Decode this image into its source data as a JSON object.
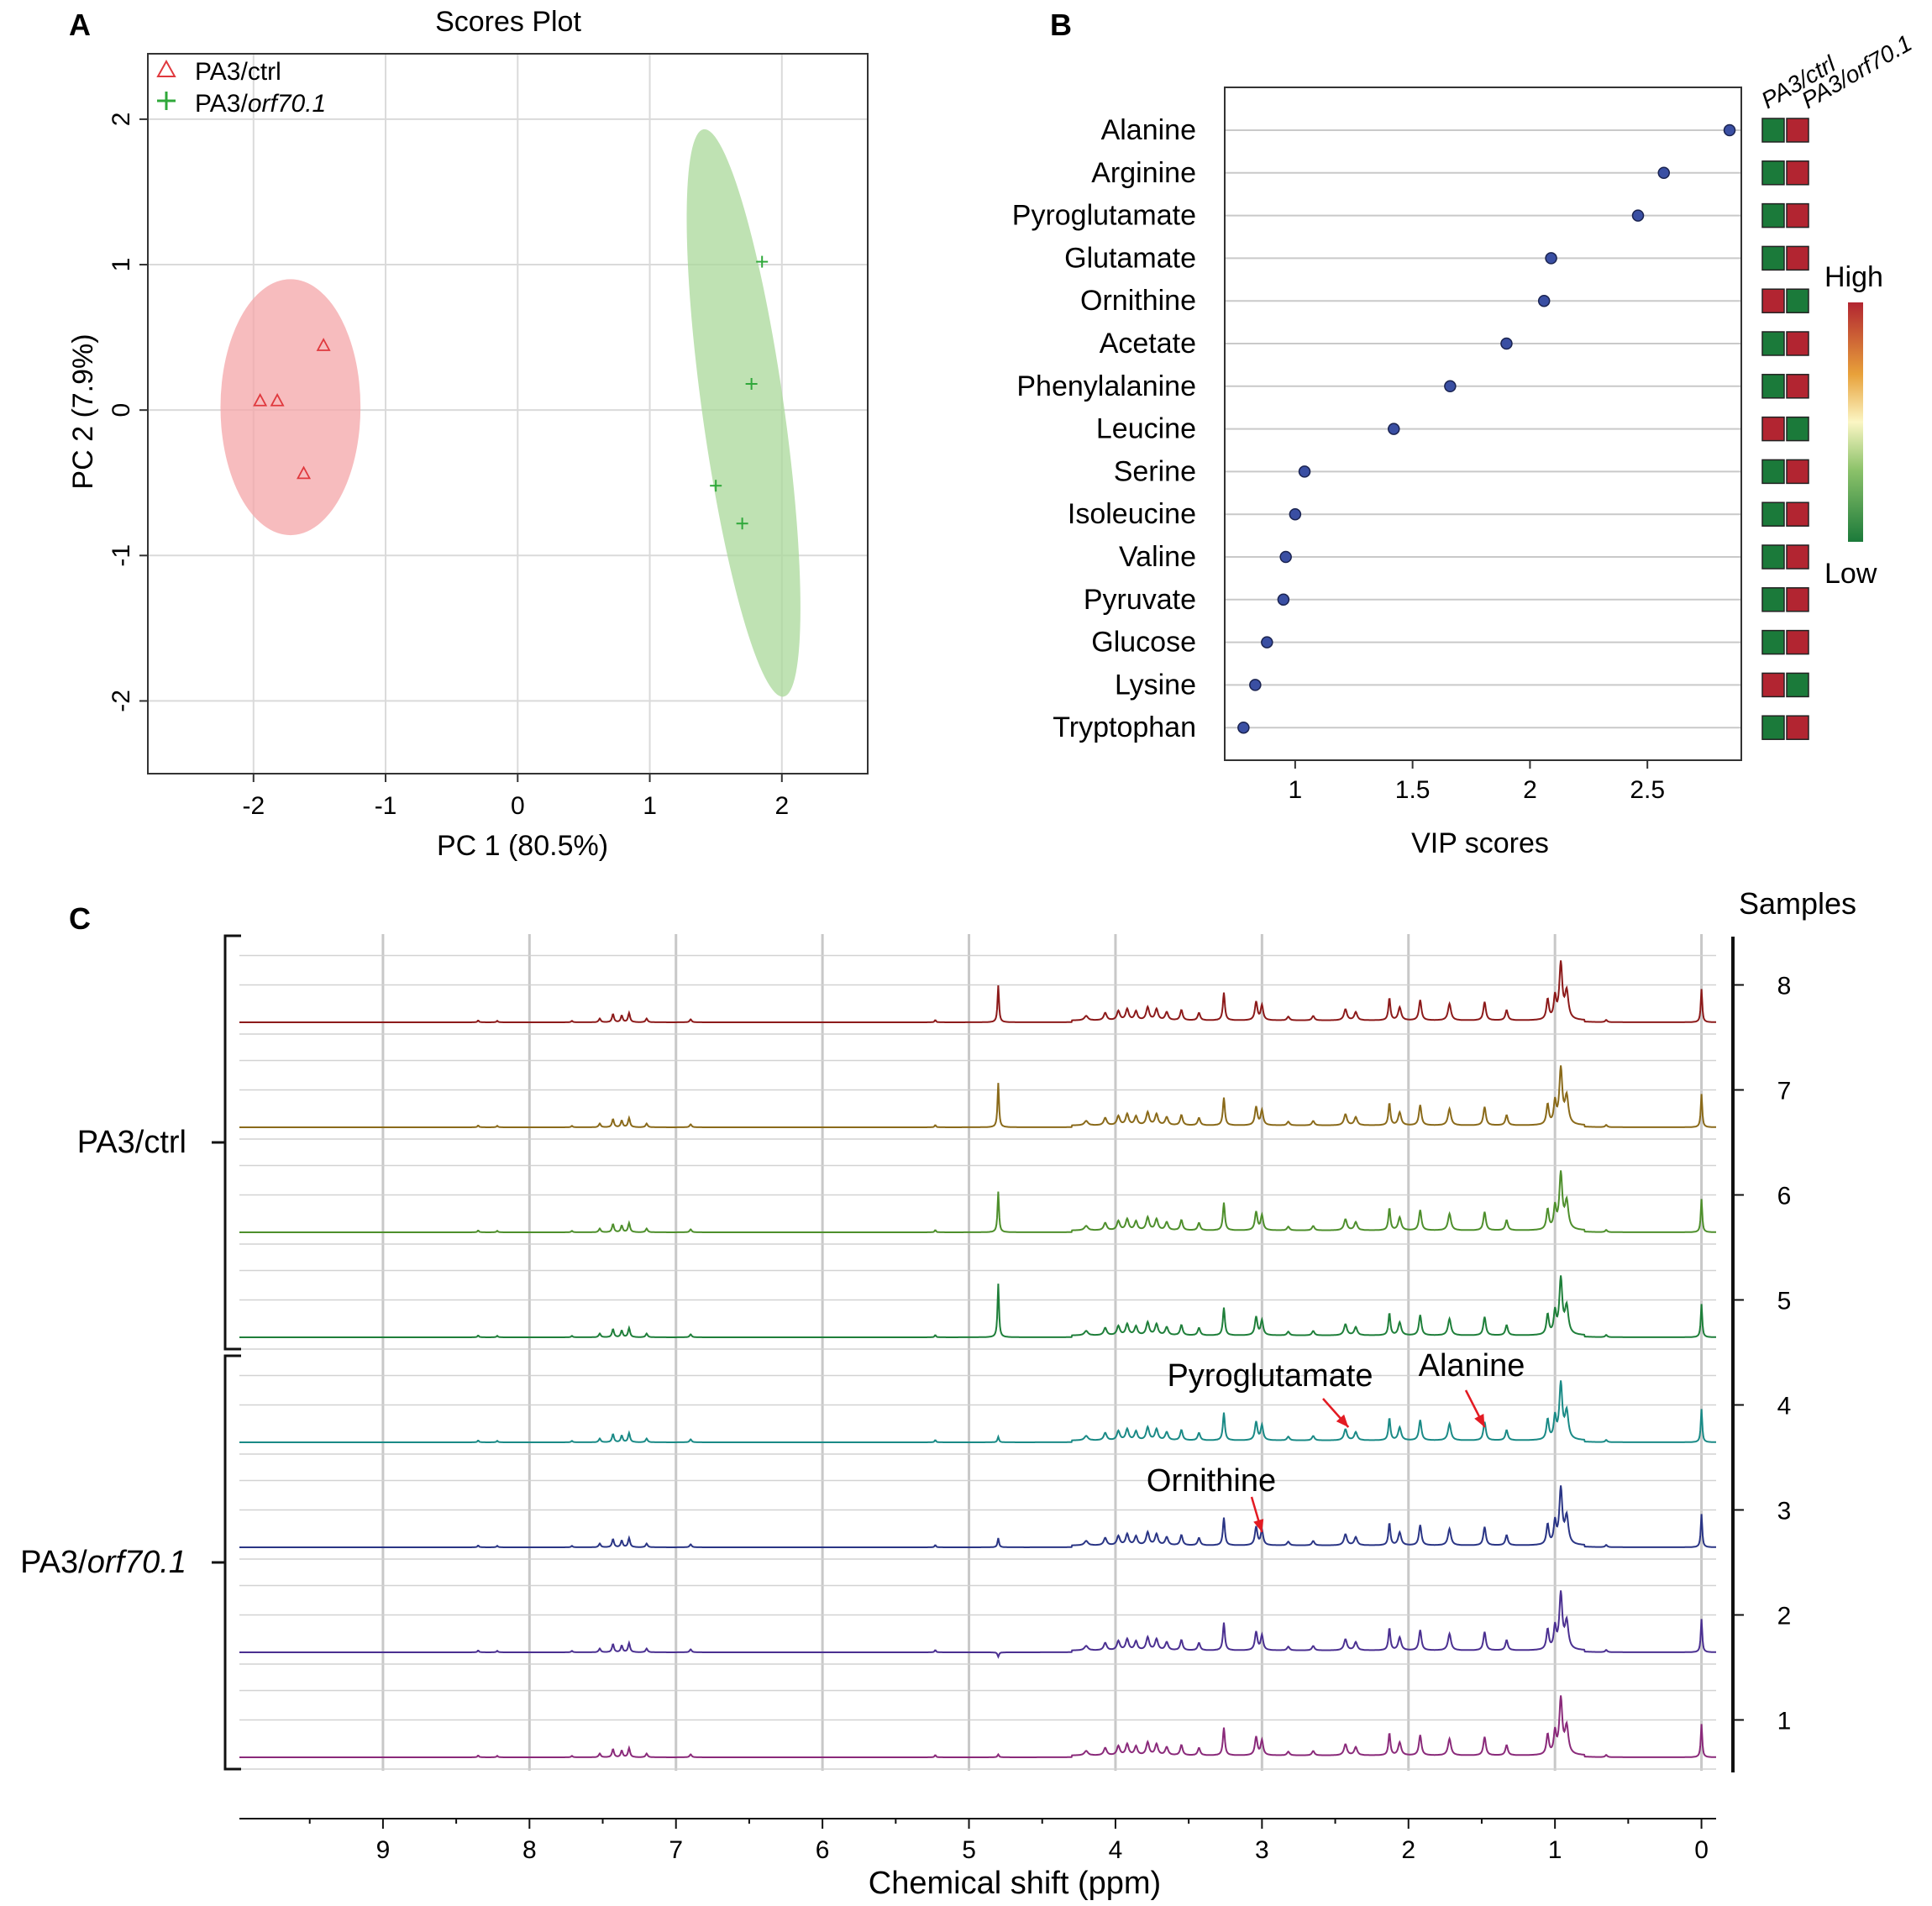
{
  "panel_labels": {
    "a": "A",
    "b": "B",
    "c": "C"
  },
  "colors": {
    "ctrl": "#e0393e",
    "ctrl_fill": "#f4a6a8",
    "orf": "#2fa83a",
    "orf_fill": "#a9d89a",
    "heat_high": "#b22531",
    "heat_low": "#1b7a3a",
    "vip_point": "#3a4fa3"
  },
  "chart_data": [
    {
      "type": "scatter",
      "title": "Scores Plot",
      "xlabel": "PC 1 (80.5%)",
      "ylabel": "PC 2 (7.9%)",
      "xlim": [
        -2.8,
        2.65
      ],
      "ylim": [
        -2.5,
        2.45
      ],
      "xticks": [
        -2,
        -1,
        0,
        1,
        2
      ],
      "yticks": [
        -2,
        -1,
        0,
        1,
        2
      ],
      "grid": true,
      "legend_position": "top-left",
      "series": [
        {
          "name": "PA3/ctrl",
          "name_main": "PA3/",
          "name_italic": "",
          "name_rest": "ctrl",
          "marker": "triangle",
          "color_key": "ctrl",
          "points": [
            [
              -1.47,
              0.44
            ],
            [
              -1.95,
              0.06
            ],
            [
              -1.82,
              0.06
            ],
            [
              -1.62,
              -0.44
            ]
          ],
          "ellipse": {
            "center": [
              -1.72,
              0.02
            ],
            "rx": 0.53,
            "ry": 0.88,
            "angle_deg": 0
          }
        },
        {
          "name": "PA3/orf70.1",
          "name_main": "PA3/",
          "name_italic": "orf70.1",
          "name_rest": "",
          "marker": "plus",
          "color_key": "orf",
          "points": [
            [
              1.85,
              1.02
            ],
            [
              1.77,
              0.18
            ],
            [
              1.5,
              -0.52
            ],
            [
              1.7,
              -0.78
            ]
          ],
          "ellipse": {
            "center": [
              1.71,
              -0.02
            ],
            "rx": 0.31,
            "ry": 1.97,
            "angle_deg": -8
          }
        }
      ]
    },
    {
      "type": "dot",
      "xlabel": "VIP scores",
      "xlim": [
        0.7,
        2.9
      ],
      "xticks": [
        "1",
        "1.5",
        "2",
        "2.5"
      ],
      "heatmap_columns": [
        "PA3/ctrl",
        "PA3/orf70.1"
      ],
      "heat_legend": {
        "high": "High",
        "low": "Low"
      },
      "items": [
        {
          "name": "Alanine",
          "vip": 2.85,
          "ctrl": "low",
          "orf": "high"
        },
        {
          "name": "Arginine",
          "vip": 2.57,
          "ctrl": "low",
          "orf": "high"
        },
        {
          "name": "Pyroglutamate",
          "vip": 2.46,
          "ctrl": "low",
          "orf": "high"
        },
        {
          "name": "Glutamate",
          "vip": 2.09,
          "ctrl": "low",
          "orf": "high"
        },
        {
          "name": "Ornithine",
          "vip": 2.06,
          "ctrl": "high",
          "orf": "low"
        },
        {
          "name": "Acetate",
          "vip": 1.9,
          "ctrl": "low",
          "orf": "high"
        },
        {
          "name": "Phenylalanine",
          "vip": 1.66,
          "ctrl": "low",
          "orf": "high"
        },
        {
          "name": "Leucine",
          "vip": 1.42,
          "ctrl": "high",
          "orf": "low"
        },
        {
          "name": "Serine",
          "vip": 1.04,
          "ctrl": "low",
          "orf": "high"
        },
        {
          "name": "Isoleucine",
          "vip": 1.0,
          "ctrl": "low",
          "orf": "high"
        },
        {
          "name": "Valine",
          "vip": 0.96,
          "ctrl": "low",
          "orf": "high"
        },
        {
          "name": "Pyruvate",
          "vip": 0.95,
          "ctrl": "low",
          "orf": "high"
        },
        {
          "name": "Glucose",
          "vip": 0.88,
          "ctrl": "low",
          "orf": "high"
        },
        {
          "name": "Lysine",
          "vip": 0.83,
          "ctrl": "high",
          "orf": "low"
        },
        {
          "name": "Tryptophan",
          "vip": 0.78,
          "ctrl": "low",
          "orf": "high"
        }
      ]
    },
    {
      "type": "line",
      "xlabel": "Chemical shift (ppm)",
      "xlim": [
        9.98,
        -0.1
      ],
      "xticks": [
        "9",
        "8",
        "7",
        "6",
        "5",
        "4",
        "3",
        "2",
        "1",
        "0"
      ],
      "right_axis_title": "Samples",
      "groups": [
        {
          "label_main": "PA3/",
          "label_italic": "",
          "label_rest": "ctrl",
          "samples": [
            8,
            7,
            6,
            5
          ]
        },
        {
          "label_main": "PA3/",
          "label_italic": "orf70.1",
          "label_rest": "",
          "samples": [
            4,
            3,
            2,
            1
          ]
        }
      ],
      "samples": [
        {
          "id": "8",
          "color": "#8c1a1a",
          "water": 1.0,
          "signal": 1.0
        },
        {
          "id": "7",
          "color": "#8a6a1a",
          "water": 1.2,
          "signal": 1.0
        },
        {
          "id": "6",
          "color": "#4e8f2c",
          "water": 1.1,
          "signal": 1.0
        },
        {
          "id": "5",
          "color": "#1f7f3a",
          "water": 1.45,
          "signal": 1.0
        },
        {
          "id": "4",
          "color": "#1a8a86",
          "water": 0.15,
          "signal": 1.0
        },
        {
          "id": "3",
          "color": "#2a3585",
          "water": 0.25,
          "signal": 1.0
        },
        {
          "id": "2",
          "color": "#4b3091",
          "water": -0.12,
          "signal": 1.0
        },
        {
          "id": "1",
          "color": "#8a2a7a",
          "water": 0.08,
          "signal": 1.0
        }
      ],
      "peaks": [
        {
          "ppm": 8.35,
          "h": 0.05,
          "w": 0.006
        },
        {
          "ppm": 8.22,
          "h": 0.04,
          "w": 0.006
        },
        {
          "ppm": 7.71,
          "h": 0.04,
          "w": 0.006
        },
        {
          "ppm": 7.52,
          "h": 0.1,
          "w": 0.008
        },
        {
          "ppm": 7.43,
          "h": 0.22,
          "w": 0.008
        },
        {
          "ppm": 7.37,
          "h": 0.18,
          "w": 0.008
        },
        {
          "ppm": 7.32,
          "h": 0.25,
          "w": 0.008
        },
        {
          "ppm": 7.2,
          "h": 0.1,
          "w": 0.008
        },
        {
          "ppm": 6.9,
          "h": 0.08,
          "w": 0.008
        },
        {
          "ppm": 5.23,
          "h": 0.06,
          "w": 0.006
        },
        {
          "ppm": 4.2,
          "h": 0.12,
          "w": 0.015
        },
        {
          "ppm": 4.07,
          "h": 0.2,
          "w": 0.012
        },
        {
          "ppm": 3.98,
          "h": 0.25,
          "w": 0.012
        },
        {
          "ppm": 3.92,
          "h": 0.3,
          "w": 0.012
        },
        {
          "ppm": 3.86,
          "h": 0.24,
          "w": 0.012
        },
        {
          "ppm": 3.78,
          "h": 0.35,
          "w": 0.012
        },
        {
          "ppm": 3.72,
          "h": 0.3,
          "w": 0.012
        },
        {
          "ppm": 3.65,
          "h": 0.22,
          "w": 0.012
        },
        {
          "ppm": 3.55,
          "h": 0.28,
          "w": 0.01
        },
        {
          "ppm": 3.43,
          "h": 0.2,
          "w": 0.01
        },
        {
          "ppm": 3.26,
          "h": 0.75,
          "w": 0.008
        },
        {
          "ppm": 3.04,
          "h": 0.5,
          "w": 0.01
        },
        {
          "ppm": 3.0,
          "h": 0.4,
          "w": 0.01
        },
        {
          "ppm": 2.82,
          "h": 0.1,
          "w": 0.01
        },
        {
          "ppm": 2.65,
          "h": 0.12,
          "w": 0.01
        },
        {
          "ppm": 2.43,
          "h": 0.3,
          "w": 0.012
        },
        {
          "ppm": 2.36,
          "h": 0.22,
          "w": 0.012
        },
        {
          "ppm": 2.13,
          "h": 0.6,
          "w": 0.008
        },
        {
          "ppm": 2.06,
          "h": 0.35,
          "w": 0.012
        },
        {
          "ppm": 1.92,
          "h": 0.55,
          "w": 0.01
        },
        {
          "ppm": 1.72,
          "h": 0.45,
          "w": 0.012
        },
        {
          "ppm": 1.48,
          "h": 0.5,
          "w": 0.01
        },
        {
          "ppm": 1.33,
          "h": 0.28,
          "w": 0.01
        },
        {
          "ppm": 1.05,
          "h": 0.55,
          "w": 0.01
        },
        {
          "ppm": 1.0,
          "h": 0.6,
          "w": 0.01
        },
        {
          "ppm": 0.96,
          "h": 1.5,
          "w": 0.012
        },
        {
          "ppm": 0.92,
          "h": 0.75,
          "w": 0.014
        },
        {
          "ppm": 0.65,
          "h": 0.06,
          "w": 0.008
        },
        {
          "ppm": 0.0,
          "h": 0.9,
          "w": 0.006
        }
      ],
      "annotations": [
        {
          "text": "Pyroglutamate",
          "ppm": 2.41,
          "sample": "4"
        },
        {
          "text": "Alanine",
          "ppm": 1.48,
          "sample": "4"
        },
        {
          "text": "Ornithine",
          "ppm": 3.0,
          "sample": "3"
        }
      ]
    }
  ]
}
